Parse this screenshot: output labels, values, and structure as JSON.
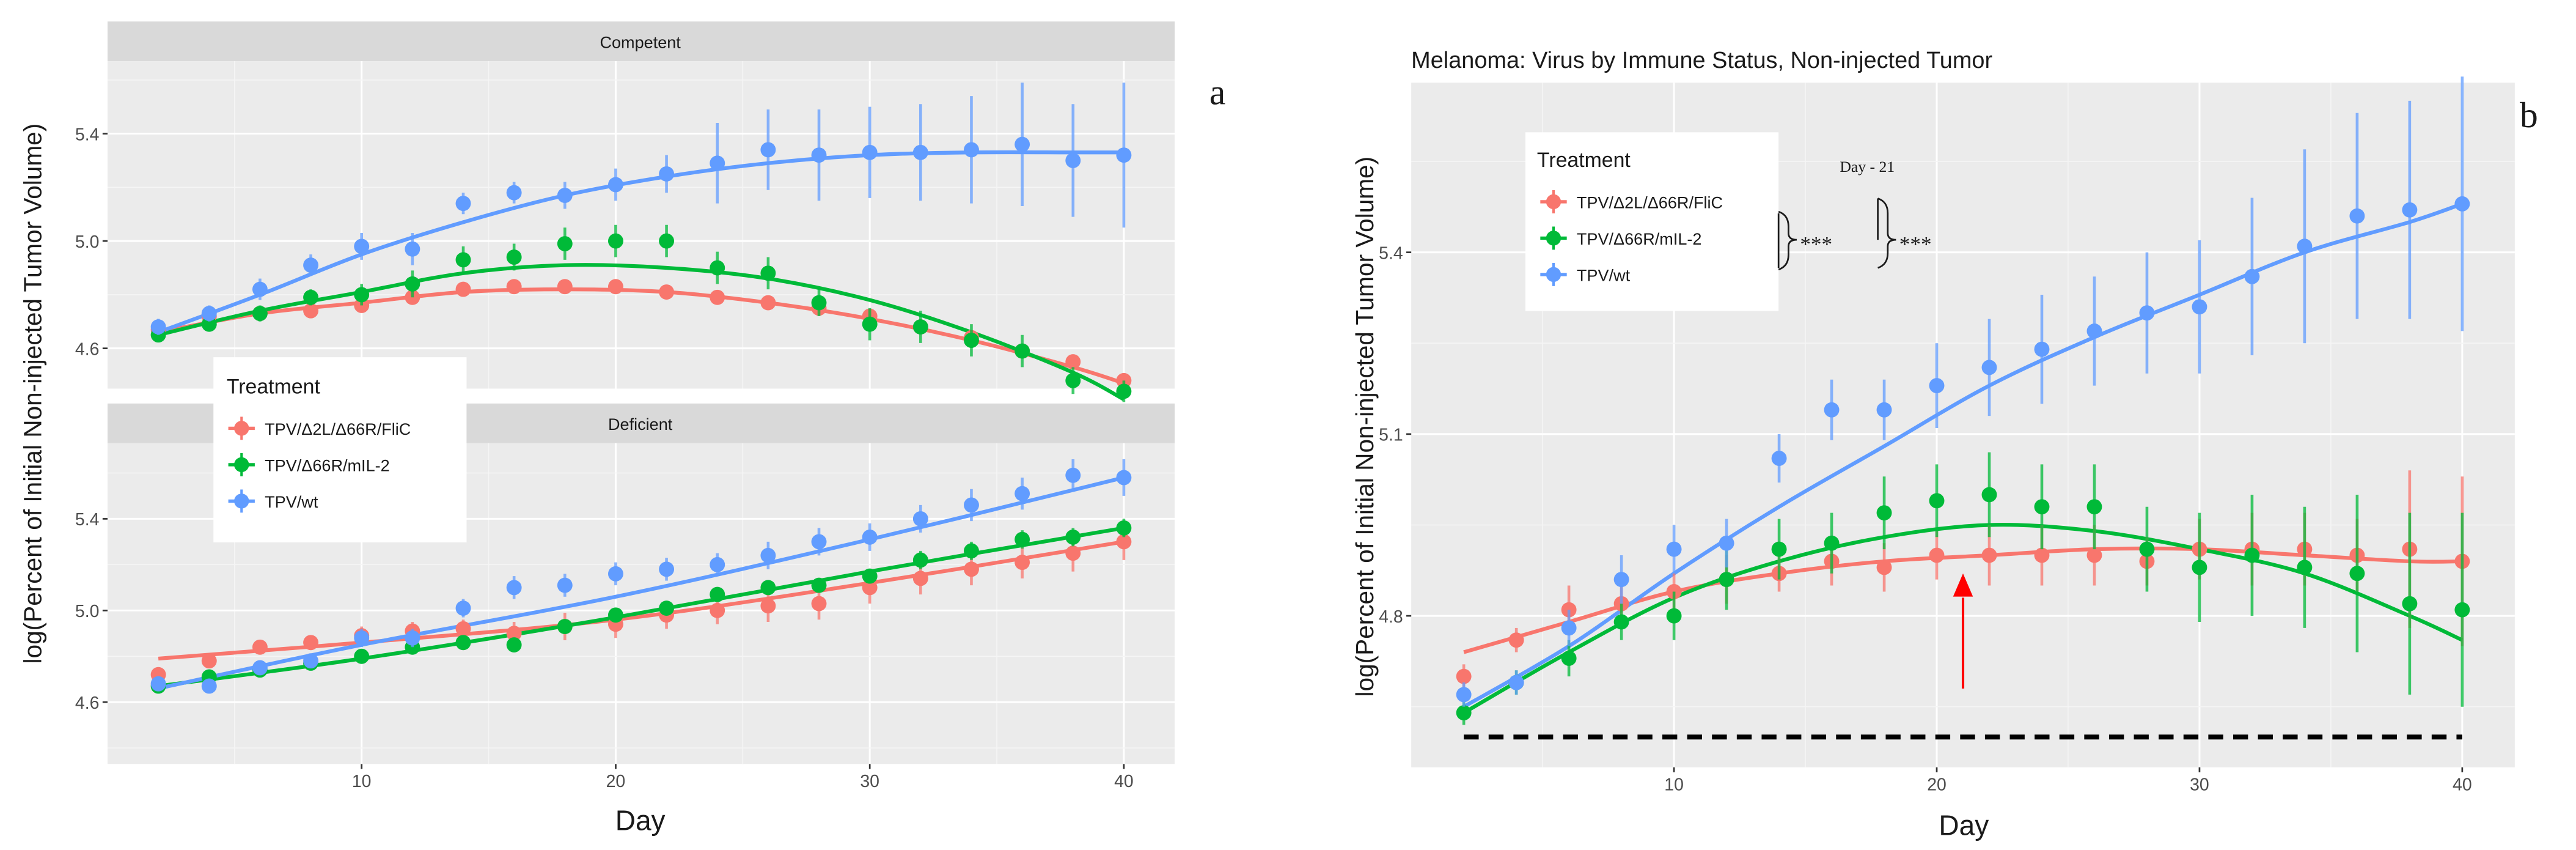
{
  "chart_data": [
    {
      "id": "a-top",
      "type": "scatter",
      "panel_letter": "a",
      "strip": "Competent",
      "ylabel": "log(Percent of Initial Non-injected Tumor Volume)",
      "yticks": [
        4.6,
        5.0,
        5.4
      ],
      "ylim": [
        4.45,
        5.67
      ],
      "xlim": [
        0,
        42
      ],
      "grid": true,
      "series": [
        {
          "name": "TPV/Δ2L/Δ66R/FliC",
          "color": "#F8766D",
          "x": [
            2,
            4,
            6,
            8,
            10,
            12,
            14,
            16,
            18,
            20,
            22,
            24,
            26,
            28,
            30,
            32,
            34,
            36,
            38,
            40
          ],
          "y": [
            4.67,
            4.72,
            4.73,
            4.74,
            4.76,
            4.79,
            4.82,
            4.83,
            4.83,
            4.83,
            4.81,
            4.79,
            4.77,
            4.75,
            4.72,
            4.68,
            4.64,
            4.59,
            4.55,
            4.48
          ],
          "err": [
            0.02,
            0.02,
            0.02,
            0.02,
            0.02,
            0.02,
            0.02,
            0.02,
            0.02,
            0.02,
            0.02,
            0.02,
            0.02,
            0.02,
            0.02,
            0.02,
            0.02,
            0.02,
            0.02,
            0.02
          ],
          "fit": [
            [
              2,
              4.66
            ],
            [
              6,
              4.73
            ],
            [
              10,
              4.77
            ],
            [
              14,
              4.81
            ],
            [
              18,
              4.82
            ],
            [
              22,
              4.81
            ],
            [
              26,
              4.77
            ],
            [
              30,
              4.71
            ],
            [
              34,
              4.63
            ],
            [
              38,
              4.53
            ],
            [
              40,
              4.47
            ]
          ]
        },
        {
          "name": "TPV/Δ66R/mIL-2",
          "color": "#00BA38",
          "x": [
            2,
            4,
            6,
            8,
            10,
            12,
            14,
            16,
            18,
            20,
            22,
            24,
            26,
            28,
            30,
            32,
            34,
            36,
            38,
            40
          ],
          "y": [
            4.65,
            4.69,
            4.73,
            4.79,
            4.8,
            4.84,
            4.93,
            4.94,
            4.99,
            5.0,
            5.0,
            4.9,
            4.88,
            4.77,
            4.69,
            4.68,
            4.63,
            4.59,
            4.48,
            4.44
          ],
          "err": [
            0.02,
            0.02,
            0.03,
            0.03,
            0.04,
            0.05,
            0.05,
            0.05,
            0.06,
            0.06,
            0.06,
            0.06,
            0.06,
            0.05,
            0.06,
            0.06,
            0.06,
            0.06,
            0.05,
            0.04
          ],
          "fit": [
            [
              2,
              4.65
            ],
            [
              6,
              4.74
            ],
            [
              10,
              4.81
            ],
            [
              14,
              4.88
            ],
            [
              18,
              4.91
            ],
            [
              22,
              4.9
            ],
            [
              26,
              4.86
            ],
            [
              30,
              4.78
            ],
            [
              34,
              4.66
            ],
            [
              38,
              4.51
            ],
            [
              40,
              4.41
            ]
          ]
        },
        {
          "name": "TPV/wt",
          "color": "#619CFF",
          "x": [
            2,
            4,
            6,
            8,
            10,
            12,
            14,
            16,
            18,
            20,
            22,
            24,
            26,
            28,
            30,
            32,
            34,
            36,
            38,
            40
          ],
          "y": [
            4.68,
            4.73,
            4.82,
            4.91,
            4.98,
            4.97,
            5.14,
            5.18,
            5.17,
            5.21,
            5.25,
            5.29,
            5.34,
            5.32,
            5.33,
            5.33,
            5.34,
            5.36,
            5.3,
            5.32
          ],
          "err": [
            0.03,
            0.03,
            0.04,
            0.04,
            0.05,
            0.06,
            0.04,
            0.04,
            0.05,
            0.06,
            0.07,
            0.15,
            0.15,
            0.17,
            0.17,
            0.18,
            0.2,
            0.23,
            0.21,
            0.27
          ],
          "fit": [
            [
              2,
              4.66
            ],
            [
              6,
              4.8
            ],
            [
              10,
              4.95
            ],
            [
              14,
              5.07
            ],
            [
              18,
              5.17
            ],
            [
              22,
              5.24
            ],
            [
              26,
              5.29
            ],
            [
              30,
              5.32
            ],
            [
              34,
              5.33
            ],
            [
              38,
              5.33
            ],
            [
              40,
              5.33
            ]
          ]
        }
      ]
    },
    {
      "id": "a-bottom",
      "type": "scatter",
      "strip": "Deficient",
      "xlabel": "Day",
      "xticks": [
        10,
        20,
        30,
        40
      ],
      "yticks": [
        4.6,
        5.0,
        5.4
      ],
      "ylim": [
        4.33,
        5.73
      ],
      "xlim": [
        0,
        42
      ],
      "grid": true,
      "legend": {
        "title": "Treatment",
        "position": "top-left overlay"
      },
      "series": [
        {
          "name": "TPV/Δ2L/Δ66R/FliC",
          "color": "#F8766D",
          "x": [
            2,
            4,
            6,
            8,
            10,
            12,
            14,
            16,
            18,
            20,
            22,
            24,
            26,
            28,
            30,
            32,
            34,
            36,
            38,
            40
          ],
          "y": [
            4.72,
            4.78,
            4.84,
            4.86,
            4.89,
            4.91,
            4.92,
            4.9,
            4.93,
            4.94,
            4.98,
            5.0,
            5.02,
            5.03,
            5.1,
            5.14,
            5.18,
            5.21,
            5.25,
            5.3
          ],
          "err": [
            0.02,
            0.02,
            0.03,
            0.03,
            0.04,
            0.04,
            0.04,
            0.05,
            0.06,
            0.06,
            0.06,
            0.06,
            0.07,
            0.07,
            0.07,
            0.07,
            0.07,
            0.07,
            0.08,
            0.08
          ],
          "fit": [
            [
              2,
              4.79
            ],
            [
              10,
              4.86
            ],
            [
              20,
              4.96
            ],
            [
              30,
              5.12
            ],
            [
              40,
              5.3
            ]
          ]
        },
        {
          "name": "TPV/Δ66R/mIL-2",
          "color": "#00BA38",
          "x": [
            2,
            4,
            6,
            8,
            10,
            12,
            14,
            16,
            18,
            20,
            22,
            24,
            26,
            28,
            30,
            32,
            34,
            36,
            38,
            40
          ],
          "y": [
            4.67,
            4.71,
            4.74,
            4.77,
            4.8,
            4.84,
            4.86,
            4.85,
            4.93,
            4.98,
            5.01,
            5.07,
            5.1,
            5.11,
            5.15,
            5.22,
            5.26,
            5.31,
            5.32,
            5.36
          ],
          "err": [
            0.02,
            0.02,
            0.02,
            0.02,
            0.02,
            0.02,
            0.02,
            0.02,
            0.03,
            0.03,
            0.03,
            0.03,
            0.03,
            0.03,
            0.03,
            0.04,
            0.04,
            0.04,
            0.04,
            0.04
          ],
          "fit": [
            [
              2,
              4.67
            ],
            [
              10,
              4.79
            ],
            [
              20,
              4.97
            ],
            [
              30,
              5.17
            ],
            [
              40,
              5.36
            ]
          ]
        },
        {
          "name": "TPV/wt",
          "color": "#619CFF",
          "x": [
            2,
            4,
            6,
            8,
            10,
            12,
            14,
            16,
            18,
            20,
            22,
            24,
            26,
            28,
            30,
            32,
            34,
            36,
            38,
            40
          ],
          "y": [
            4.68,
            4.67,
            4.75,
            4.78,
            4.88,
            4.88,
            5.01,
            5.1,
            5.11,
            5.16,
            5.18,
            5.2,
            5.24,
            5.3,
            5.32,
            5.4,
            5.46,
            5.51,
            5.59,
            5.58
          ],
          "err": [
            0.02,
            0.02,
            0.02,
            0.03,
            0.04,
            0.04,
            0.04,
            0.05,
            0.05,
            0.05,
            0.05,
            0.05,
            0.06,
            0.06,
            0.06,
            0.06,
            0.07,
            0.07,
            0.07,
            0.08
          ],
          "fit": [
            [
              2,
              4.66
            ],
            [
              10,
              4.85
            ],
            [
              20,
              5.06
            ],
            [
              30,
              5.31
            ],
            [
              40,
              5.58
            ]
          ]
        }
      ]
    },
    {
      "id": "b",
      "type": "scatter",
      "panel_letter": "b",
      "title": "Melanoma: Virus by Immune Status, Non-injected Tumor",
      "xlabel": "Day",
      "ylabel": "log(Percent of Initial Non-injected Tumor Volume)",
      "xticks": [
        10,
        20,
        30,
        40
      ],
      "yticks": [
        4.8,
        5.1,
        5.4
      ],
      "ylim": [
        4.55,
        5.68
      ],
      "xlim": [
        0,
        42
      ],
      "grid": true,
      "legend": {
        "title": "Treatment",
        "position": "top-left overlay"
      },
      "annotations": {
        "day_label": "Day - 21",
        "sig_1": "***",
        "sig_2": "***",
        "arrow_day": 21,
        "baseline_y": 4.6
      },
      "series": [
        {
          "name": "TPV/Δ2L/Δ66R/FliC",
          "color": "#F8766D",
          "x": [
            2,
            4,
            6,
            8,
            10,
            12,
            14,
            16,
            18,
            20,
            22,
            24,
            26,
            28,
            30,
            32,
            34,
            36,
            38,
            40
          ],
          "y": [
            4.7,
            4.76,
            4.81,
            4.82,
            4.84,
            4.86,
            4.87,
            4.89,
            4.88,
            4.9,
            4.9,
            4.9,
            4.9,
            4.89,
            4.91,
            4.91,
            4.91,
            4.9,
            4.91,
            4.89
          ],
          "err": [
            0.02,
            0.02,
            0.04,
            0.04,
            0.03,
            0.04,
            0.03,
            0.04,
            0.04,
            0.04,
            0.05,
            0.05,
            0.05,
            0.04,
            0.05,
            0.06,
            0.06,
            0.06,
            0.13,
            0.14
          ],
          "fit": [
            [
              2,
              4.74
            ],
            [
              6,
              4.79
            ],
            [
              10,
              4.84
            ],
            [
              14,
              4.87
            ],
            [
              18,
              4.89
            ],
            [
              22,
              4.9
            ],
            [
              26,
              4.91
            ],
            [
              30,
              4.91
            ],
            [
              34,
              4.9
            ],
            [
              38,
              4.89
            ],
            [
              40,
              4.89
            ]
          ]
        },
        {
          "name": "TPV/Δ66R/mIL-2",
          "color": "#00BA38",
          "x": [
            2,
            4,
            6,
            8,
            10,
            12,
            14,
            16,
            18,
            20,
            22,
            24,
            26,
            28,
            30,
            32,
            34,
            36,
            38,
            40
          ],
          "y": [
            4.64,
            4.69,
            4.73,
            4.79,
            4.8,
            4.86,
            4.91,
            4.92,
            4.97,
            4.99,
            5.0,
            4.98,
            4.98,
            4.91,
            4.88,
            4.9,
            4.88,
            4.87,
            4.82,
            4.81
          ],
          "err": [
            0.02,
            0.02,
            0.03,
            0.03,
            0.04,
            0.05,
            0.05,
            0.05,
            0.06,
            0.06,
            0.07,
            0.07,
            0.07,
            0.07,
            0.09,
            0.1,
            0.1,
            0.13,
            0.15,
            0.16
          ],
          "fit": [
            [
              2,
              4.64
            ],
            [
              6,
              4.74
            ],
            [
              10,
              4.83
            ],
            [
              14,
              4.89
            ],
            [
              18,
              4.93
            ],
            [
              22,
              4.95
            ],
            [
              26,
              4.94
            ],
            [
              30,
              4.91
            ],
            [
              34,
              4.87
            ],
            [
              38,
              4.8
            ],
            [
              40,
              4.76
            ]
          ]
        },
        {
          "name": "TPV/wt",
          "color": "#619CFF",
          "x": [
            2,
            4,
            6,
            8,
            10,
            12,
            14,
            16,
            18,
            20,
            22,
            24,
            26,
            28,
            30,
            32,
            34,
            36,
            38,
            40
          ],
          "y": [
            4.67,
            4.69,
            4.78,
            4.86,
            4.91,
            4.92,
            5.06,
            5.14,
            5.14,
            5.18,
            5.21,
            5.24,
            5.27,
            5.3,
            5.31,
            5.36,
            5.41,
            5.46,
            5.47,
            5.48
          ],
          "err": [
            0.02,
            0.02,
            0.03,
            0.04,
            0.04,
            0.04,
            0.04,
            0.05,
            0.05,
            0.07,
            0.08,
            0.09,
            0.09,
            0.1,
            0.11,
            0.13,
            0.16,
            0.17,
            0.18,
            0.21
          ],
          "fit": [
            [
              2,
              4.65
            ],
            [
              6,
              4.75
            ],
            [
              10,
              4.87
            ],
            [
              14,
              4.98
            ],
            [
              18,
              5.08
            ],
            [
              22,
              5.18
            ],
            [
              26,
              5.26
            ],
            [
              30,
              5.33
            ],
            [
              34,
              5.4
            ],
            [
              38,
              5.45
            ],
            [
              40,
              5.48
            ]
          ]
        }
      ]
    }
  ]
}
